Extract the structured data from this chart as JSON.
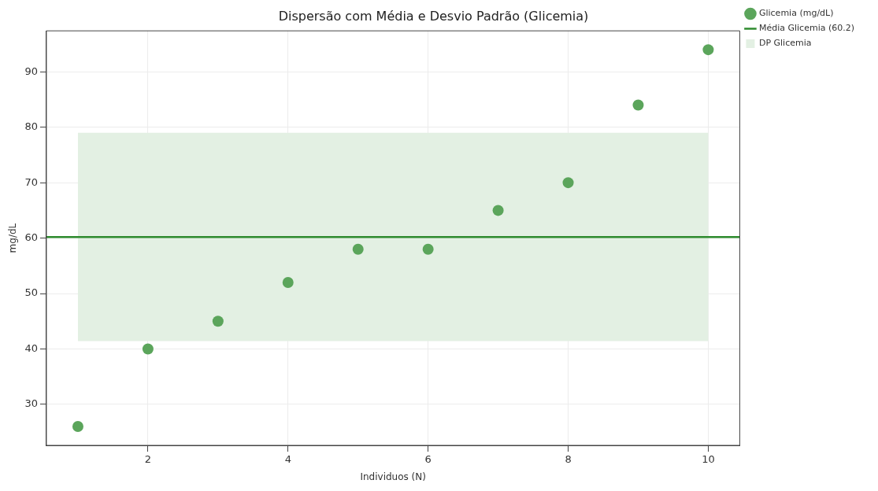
{
  "chart_data": {
    "type": "scatter",
    "title": "Dispersão com Média e Desvio Padrão (Glicemia)",
    "xlabel": "Individuos (N)",
    "ylabel": "mg/dL",
    "x": [
      1,
      2,
      3,
      4,
      5,
      6,
      7,
      8,
      9,
      10
    ],
    "series": [
      {
        "name": "Glicemia (mg/dL)",
        "color": "#5ba55b",
        "values": [
          26,
          40,
          45,
          52,
          58,
          58,
          65,
          70,
          84,
          94
        ]
      }
    ],
    "ref_lines": [
      {
        "axis": "y",
        "value": 60.2,
        "label": "Média Glicemia (60.2)",
        "color": "#2e8b2e",
        "line_style": "solid"
      }
    ],
    "bands": [
      {
        "axis": "y",
        "from": 41.4,
        "to": 79.0,
        "label": "DP Glicemia",
        "color": "#e3f0e3"
      }
    ],
    "xlim": [
      0.55,
      10.45
    ],
    "ylim": [
      22.6,
      97.4
    ],
    "xticks": [
      2,
      4,
      6,
      8,
      10
    ],
    "yticks": [
      30,
      40,
      50,
      60,
      70,
      80,
      90
    ],
    "grid": true,
    "legend": "top right",
    "marker": "circle"
  }
}
